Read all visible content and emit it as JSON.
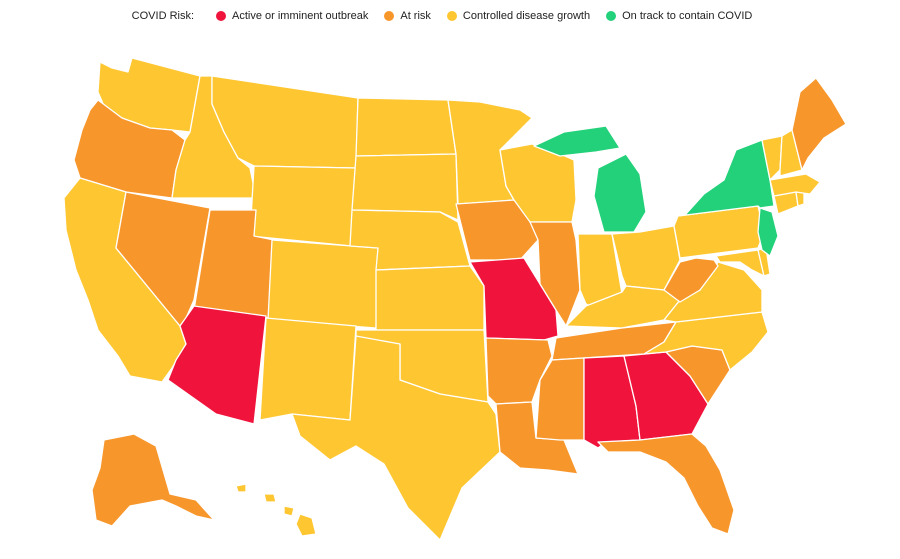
{
  "legend": {
    "title": "COVID Risk:",
    "items": [
      {
        "key": "outbreak",
        "label": "Active or imminent outbreak",
        "color": "#f0143c"
      },
      {
        "key": "risk",
        "label": "At risk",
        "color": "#f7962b"
      },
      {
        "key": "controlled",
        "label": "Controlled disease growth",
        "color": "#fec631"
      },
      {
        "key": "track",
        "label": "On track to contain COVID",
        "color": "#22d17a"
      }
    ]
  },
  "states": {
    "WA": "controlled",
    "OR": "risk",
    "CA": "controlled",
    "NV": "risk",
    "ID": "controlled",
    "MT": "controlled",
    "WY": "controlled",
    "UT": "risk",
    "AZ": "outbreak",
    "CO": "controlled",
    "NM": "controlled",
    "ND": "controlled",
    "SD": "controlled",
    "NE": "controlled",
    "KS": "controlled",
    "OK": "controlled",
    "TX": "controlled",
    "MN": "controlled",
    "IA": "risk",
    "MO": "outbreak",
    "AR": "risk",
    "LA": "risk",
    "WI": "controlled",
    "IL": "risk",
    "MI": "track",
    "IN": "controlled",
    "OH": "controlled",
    "KY": "controlled",
    "TN": "risk",
    "MS": "risk",
    "AL": "outbreak",
    "GA": "outbreak",
    "FL": "risk",
    "SC": "risk",
    "NC": "controlled",
    "VA": "controlled",
    "WV": "risk",
    "PA": "controlled",
    "NY": "track",
    "NJ": "track",
    "DE": "controlled",
    "MD": "controlled",
    "VT": "controlled",
    "NH": "controlled",
    "ME": "risk",
    "MA": "controlled",
    "CT": "controlled",
    "RI": "controlled",
    "AK": "risk",
    "HI": "controlled"
  }
}
